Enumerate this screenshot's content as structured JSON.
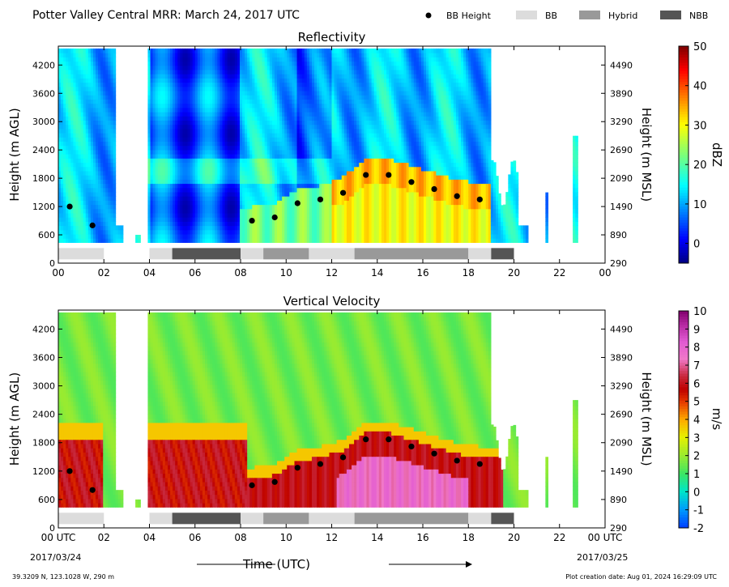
{
  "header": {
    "title": "Potter Valley Central MRR:  March 24, 2017 UTC"
  },
  "legend": {
    "items": [
      {
        "label": "BB Height",
        "symbol": "dot",
        "color": "#000000"
      },
      {
        "label": "BB",
        "symbol": "bar",
        "color": "#dcdcdc"
      },
      {
        "label": "Hybrid",
        "symbol": "bar",
        "color": "#999999"
      },
      {
        "label": "NBB",
        "symbol": "bar",
        "color": "#555555"
      }
    ]
  },
  "footer": {
    "location": "39.3209 N, 123.1028 W, 290 m",
    "creation": "Plot creation date: Aug 01, 2024 16:29:09 UTC",
    "xlabel": "Time (UTC)",
    "start_date": "2017/03/24",
    "end_date": "2017/03/25"
  },
  "chart_data": [
    {
      "type": "heatmap",
      "title": "Reflectivity",
      "ylabel_left": "Height (m AGL)",
      "ylabel_right": "Height (m MSL)",
      "x_ticks": [
        "00",
        "02",
        "04",
        "06",
        "08",
        "10",
        "12",
        "14",
        "16",
        "18",
        "20",
        "22",
        "00"
      ],
      "x_range_hours": [
        0,
        24
      ],
      "y_ticks_left": [
        0,
        600,
        1200,
        1800,
        2400,
        3000,
        3600,
        4200
      ],
      "y_ticks_right": [
        290,
        890,
        1490,
        2090,
        2690,
        3290,
        3890,
        4490
      ],
      "y_range": [
        0,
        4600
      ],
      "colorbar": {
        "label": "dBZ",
        "range": [
          -5,
          50
        ],
        "ticks": [
          "0",
          "10",
          "20",
          "30",
          "40",
          "50"
        ],
        "tick_values": [
          0,
          10,
          20,
          30,
          40,
          50
        ],
        "colormap": "jet"
      },
      "bb_height": {
        "x": [
          0.5,
          1.5,
          8.5,
          9.5,
          10.5,
          11.5,
          12.5,
          13.5,
          14.5,
          15.5,
          16.5,
          17.5,
          18.5
        ],
        "y": [
          1200,
          800,
          900,
          970,
          1270,
          1350,
          1490,
          1870,
          1870,
          1720,
          1570,
          1420,
          1350
        ]
      },
      "classification": [
        {
          "start": 0.0,
          "end": 2.0,
          "type": "BB"
        },
        {
          "start": 4.0,
          "end": 5.0,
          "type": "BB"
        },
        {
          "start": 5.0,
          "end": 8.0,
          "type": "NBB"
        },
        {
          "start": 8.0,
          "end": 9.0,
          "type": "BB"
        },
        {
          "start": 9.0,
          "end": 11.0,
          "type": "Hybrid"
        },
        {
          "start": 11.0,
          "end": 13.0,
          "type": "BB"
        },
        {
          "start": 13.0,
          "end": 18.0,
          "type": "Hybrid"
        },
        {
          "start": 18.0,
          "end": 19.0,
          "type": "BB"
        },
        {
          "start": 19.0,
          "end": 20.0,
          "type": "NBB"
        }
      ]
    },
    {
      "type": "heatmap",
      "title": "Vertical Velocity",
      "ylabel_left": "Height (m AGL)",
      "ylabel_right": "Height (m MSL)",
      "x_ticks": [
        "00 UTC",
        "02",
        "04",
        "06",
        "08",
        "10",
        "12",
        "14",
        "16",
        "18",
        "20",
        "22",
        "00 UTC"
      ],
      "x_range_hours": [
        0,
        24
      ],
      "y_ticks_left": [
        0,
        600,
        1200,
        1800,
        2400,
        3000,
        3600,
        4200
      ],
      "y_ticks_right": [
        290,
        890,
        1490,
        2090,
        2690,
        3290,
        3890,
        4490
      ],
      "y_range": [
        0,
        4600
      ],
      "colorbar": {
        "label": "m/s",
        "range": [
          -2,
          10
        ],
        "ticks": [
          "-2",
          "-1",
          "0",
          "1",
          "2",
          "3",
          "4",
          "5",
          "6",
          "7",
          "8",
          "9",
          "10"
        ],
        "tick_values": [
          -2,
          -1,
          0,
          1,
          2,
          3,
          4,
          5,
          6,
          7,
          8,
          9,
          10
        ],
        "colormap": "velocity"
      },
      "bb_height": {
        "x": [
          0.5,
          1.5,
          8.5,
          9.5,
          10.5,
          11.5,
          12.5,
          13.5,
          14.5,
          15.5,
          16.5,
          17.5,
          18.5
        ],
        "y": [
          1200,
          800,
          900,
          970,
          1270,
          1350,
          1490,
          1870,
          1870,
          1720,
          1570,
          1420,
          1350
        ]
      },
      "classification": [
        {
          "start": 0.0,
          "end": 2.0,
          "type": "BB"
        },
        {
          "start": 4.0,
          "end": 5.0,
          "type": "BB"
        },
        {
          "start": 5.0,
          "end": 8.0,
          "type": "NBB"
        },
        {
          "start": 8.0,
          "end": 9.0,
          "type": "BB"
        },
        {
          "start": 9.0,
          "end": 11.0,
          "type": "Hybrid"
        },
        {
          "start": 11.0,
          "end": 13.0,
          "type": "BB"
        },
        {
          "start": 13.0,
          "end": 18.0,
          "type": "Hybrid"
        },
        {
          "start": 18.0,
          "end": 19.0,
          "type": "BB"
        },
        {
          "start": 19.0,
          "end": 20.0,
          "type": "NBB"
        }
      ]
    }
  ]
}
